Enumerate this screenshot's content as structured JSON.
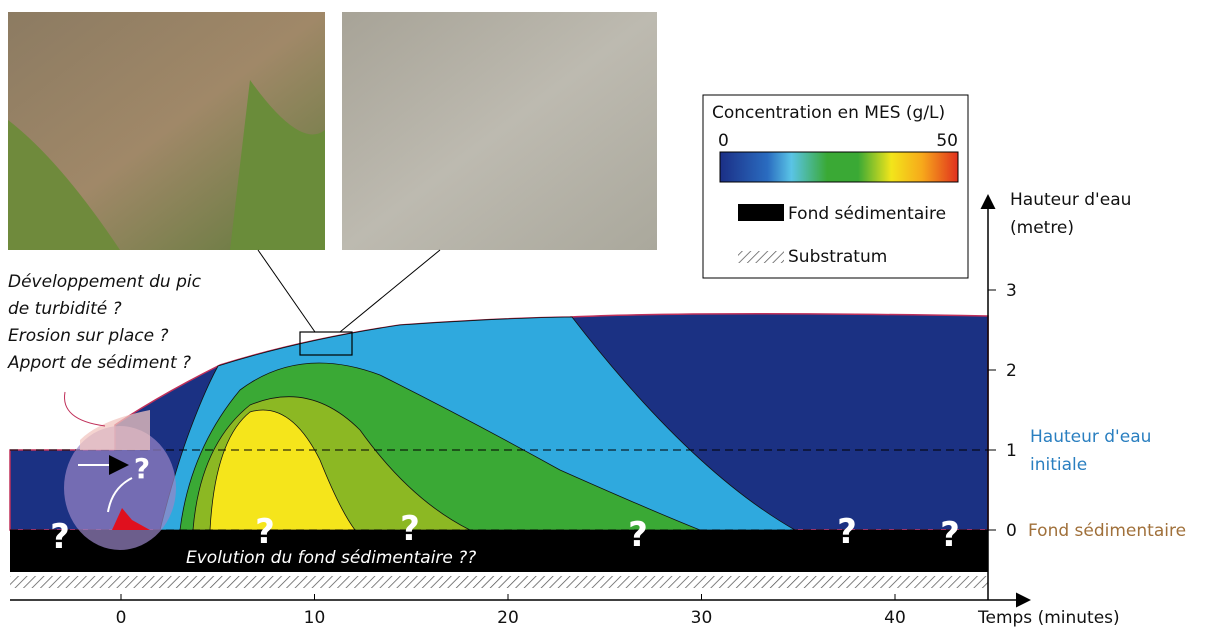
{
  "annotations": {
    "question_text": [
      "Développement du pic",
      "de turbidité ?",
      "Erosion sur place ?",
      "Apport de sédiment ?"
    ],
    "bottom_note": "Evolution du fond sédimentaire ??"
  },
  "legend": {
    "title": "Concentration en MES (g/L)",
    "scale_min": 0,
    "scale_max": 50,
    "items": [
      "Fond sédimentaire",
      "Substratum"
    ]
  },
  "y_axis": {
    "label": [
      "Hauteur d'eau",
      "(metre)"
    ],
    "ticks": [
      0,
      1,
      2,
      3
    ]
  },
  "x_axis": {
    "label": "Temps (minutes)",
    "ticks": [
      0,
      10,
      20,
      30,
      40
    ]
  },
  "levels": {
    "initial": [
      "Hauteur d'eau",
      "initiale"
    ],
    "bed": "Fond sédimentaire"
  },
  "question_marks": [
    "?",
    "?",
    "?",
    "?",
    "?",
    "?",
    "?",
    "?"
  ]
}
